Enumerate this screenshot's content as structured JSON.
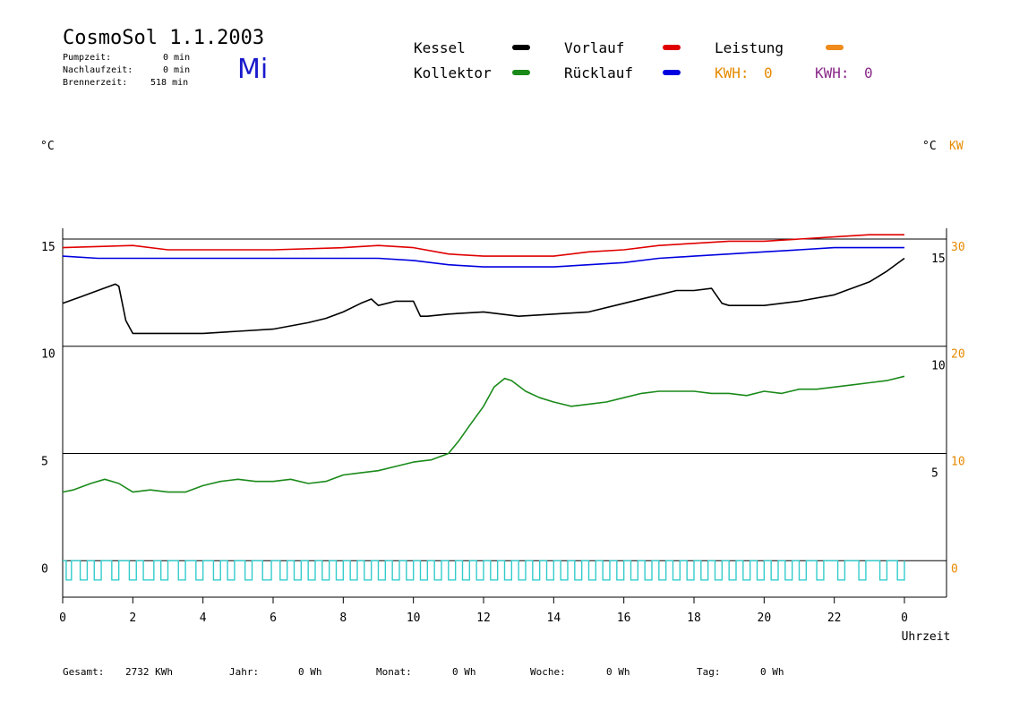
{
  "header": {
    "title": "CosmoSol 1.1.2003",
    "day": "Mi",
    "stats": [
      {
        "label": "Pumpzeit:",
        "value": "0 min"
      },
      {
        "label": "Nachlaufzeit:",
        "value": "0 min"
      },
      {
        "label": "Brennerzeit:",
        "value": "518 min"
      }
    ]
  },
  "legend": {
    "kessel": {
      "label": "Kessel",
      "color": "#000000"
    },
    "vorlauf": {
      "label": "Vorlauf",
      "color": "#e00000"
    },
    "leistung": {
      "label": "Leistung",
      "color": "#f08a1a"
    },
    "kollektor": {
      "label": "Kollektor",
      "color": "#1a8a1a"
    },
    "ruecklauf": {
      "label": "Rücklauf",
      "color": "#0000e0"
    },
    "kwh1_label": "KWH:",
    "kwh1_value": "0",
    "kwh2_label": "KWH:",
    "kwh2_value": "0"
  },
  "units": {
    "left": "°C",
    "right_c": "°C",
    "right_kw": "KW"
  },
  "footer": {
    "gesamt_label": "Gesamt:",
    "gesamt_value": "2732 KWh",
    "jahr_label": "Jahr:",
    "jahr_value": "0 Wh",
    "monat_label": "Monat:",
    "monat_value": "0 Wh",
    "woche_label": "Woche:",
    "woche_value": "0 Wh",
    "tag_label": "Tag:",
    "tag_value": "0 Wh"
  },
  "chart_data": {
    "type": "line",
    "xlabel": "Uhrzeit",
    "x_ticks": [
      "0",
      "2",
      "4",
      "6",
      "8",
      "10",
      "12",
      "14",
      "16",
      "18",
      "20",
      "22",
      "0"
    ],
    "xlim": [
      0,
      24
    ],
    "ylim": [
      -1.7,
      15.5
    ],
    "y_left_ticks": [
      15,
      10,
      5,
      0
    ],
    "y_right_c_ticks": [
      15,
      10,
      5
    ],
    "y_right_kw_ticks": [
      30,
      20,
      10,
      0
    ],
    "grid_y": [
      15,
      10,
      5,
      0
    ],
    "series": [
      {
        "name": "Vorlauf",
        "color": "#e00000",
        "x": [
          0,
          2,
          3,
          4,
          6,
          8,
          9,
          10,
          11,
          12,
          13,
          14,
          15,
          16,
          17,
          18,
          19,
          20,
          21,
          22,
          23,
          24
        ],
        "y": [
          14.6,
          14.7,
          14.5,
          14.5,
          14.5,
          14.6,
          14.7,
          14.6,
          14.3,
          14.2,
          14.2,
          14.2,
          14.4,
          14.5,
          14.7,
          14.8,
          14.9,
          14.9,
          15.0,
          15.1,
          15.2,
          15.2
        ]
      },
      {
        "name": "Rücklauf",
        "color": "#0000e0",
        "x": [
          0,
          1,
          2,
          3,
          4,
          6,
          8,
          9,
          10,
          11,
          12,
          13,
          14,
          15,
          16,
          17,
          18,
          19,
          20,
          21,
          22,
          23,
          24
        ],
        "y": [
          14.2,
          14.1,
          14.1,
          14.1,
          14.1,
          14.1,
          14.1,
          14.1,
          14.0,
          13.8,
          13.7,
          13.7,
          13.7,
          13.8,
          13.9,
          14.1,
          14.2,
          14.3,
          14.4,
          14.5,
          14.6,
          14.6,
          14.6
        ]
      },
      {
        "name": "Kessel",
        "color": "#000000",
        "x": [
          0,
          0.5,
          1,
          1.5,
          1.6,
          1.8,
          2.0,
          3,
          4,
          5,
          6,
          7,
          7.5,
          8,
          8.5,
          8.8,
          9,
          9.5,
          10,
          10.2,
          10.4,
          11,
          12,
          13,
          14,
          15,
          16,
          17,
          17.5,
          18,
          18.5,
          18.8,
          19,
          20,
          21,
          22,
          23,
          23.5,
          24
        ],
        "y": [
          12.0,
          12.3,
          12.6,
          12.9,
          12.8,
          11.2,
          10.6,
          10.6,
          10.6,
          10.7,
          10.8,
          11.1,
          11.3,
          11.6,
          12.0,
          12.2,
          11.9,
          12.1,
          12.1,
          11.4,
          11.4,
          11.5,
          11.6,
          11.4,
          11.5,
          11.6,
          12.0,
          12.4,
          12.6,
          12.6,
          12.7,
          12.0,
          11.9,
          11.9,
          12.1,
          12.4,
          13.0,
          13.5,
          14.1
        ]
      },
      {
        "name": "Kollektor",
        "color": "#1a8a1a",
        "x": [
          0,
          0.3,
          0.8,
          1.2,
          1.6,
          2.0,
          2.5,
          3.0,
          3.5,
          4.0,
          4.5,
          5,
          5.5,
          6,
          6.5,
          7.0,
          7.5,
          8,
          8.5,
          9,
          9.5,
          10,
          10.5,
          11,
          11.3,
          11.6,
          12,
          12.3,
          12.6,
          12.8,
          13.2,
          13.6,
          14,
          14.5,
          15,
          15.5,
          16,
          16.5,
          17,
          18,
          18.5,
          19,
          19.5,
          20,
          20.5,
          21,
          21.5,
          22,
          22.5,
          23,
          23.5,
          24
        ],
        "y": [
          3.2,
          3.3,
          3.6,
          3.8,
          3.6,
          3.2,
          3.3,
          3.2,
          3.2,
          3.5,
          3.7,
          3.8,
          3.7,
          3.7,
          3.8,
          3.6,
          3.7,
          4.0,
          4.1,
          4.2,
          4.4,
          4.6,
          4.7,
          5.0,
          5.6,
          6.3,
          7.2,
          8.1,
          8.5,
          8.4,
          7.9,
          7.6,
          7.4,
          7.2,
          7.3,
          7.4,
          7.6,
          7.8,
          7.9,
          7.9,
          7.8,
          7.8,
          7.7,
          7.9,
          7.8,
          8.0,
          8.0,
          8.1,
          8.2,
          8.3,
          8.4,
          8.6
        ]
      }
    ],
    "brenner_pulses": {
      "name": "Brenner",
      "color": "#33cccc",
      "low": -0.9,
      "high": 0,
      "on_intervals": [
        [
          0.1,
          0.25
        ],
        [
          0.5,
          0.7
        ],
        [
          0.9,
          1.1
        ],
        [
          1.4,
          1.6
        ],
        [
          1.9,
          2.1
        ],
        [
          2.3,
          2.6
        ],
        [
          2.8,
          3.0
        ],
        [
          3.3,
          3.5
        ],
        [
          3.8,
          4.0
        ],
        [
          4.3,
          4.5
        ],
        [
          4.7,
          4.9
        ],
        [
          5.2,
          5.4
        ],
        [
          5.7,
          5.95
        ],
        [
          6.2,
          6.4
        ],
        [
          6.6,
          6.8
        ],
        [
          7.0,
          7.2
        ],
        [
          7.4,
          7.6
        ],
        [
          7.8,
          8.0
        ],
        [
          8.2,
          8.4
        ],
        [
          8.6,
          8.8
        ],
        [
          9.0,
          9.2
        ],
        [
          9.4,
          9.6
        ],
        [
          9.8,
          10.0
        ],
        [
          10.2,
          10.4
        ],
        [
          10.6,
          10.8
        ],
        [
          11.0,
          11.2
        ],
        [
          11.4,
          11.6
        ],
        [
          11.8,
          12.0
        ],
        [
          12.2,
          12.4
        ],
        [
          12.6,
          12.8
        ],
        [
          13.0,
          13.2
        ],
        [
          13.4,
          13.6
        ],
        [
          13.8,
          14.0
        ],
        [
          14.2,
          14.4
        ],
        [
          14.6,
          14.8
        ],
        [
          15.0,
          15.2
        ],
        [
          15.4,
          15.6
        ],
        [
          15.8,
          16.0
        ],
        [
          16.2,
          16.4
        ],
        [
          16.6,
          16.8
        ],
        [
          17.0,
          17.2
        ],
        [
          17.4,
          17.6
        ],
        [
          17.8,
          18.0
        ],
        [
          18.2,
          18.4
        ],
        [
          18.6,
          18.8
        ],
        [
          19.0,
          19.2
        ],
        [
          19.4,
          19.6
        ],
        [
          19.8,
          20.0
        ],
        [
          20.2,
          20.4
        ],
        [
          20.6,
          20.8
        ],
        [
          21.0,
          21.2
        ],
        [
          21.5,
          21.7
        ],
        [
          22.1,
          22.3
        ],
        [
          22.7,
          22.9
        ],
        [
          23.3,
          23.5
        ],
        [
          23.8,
          24.0
        ]
      ]
    }
  }
}
